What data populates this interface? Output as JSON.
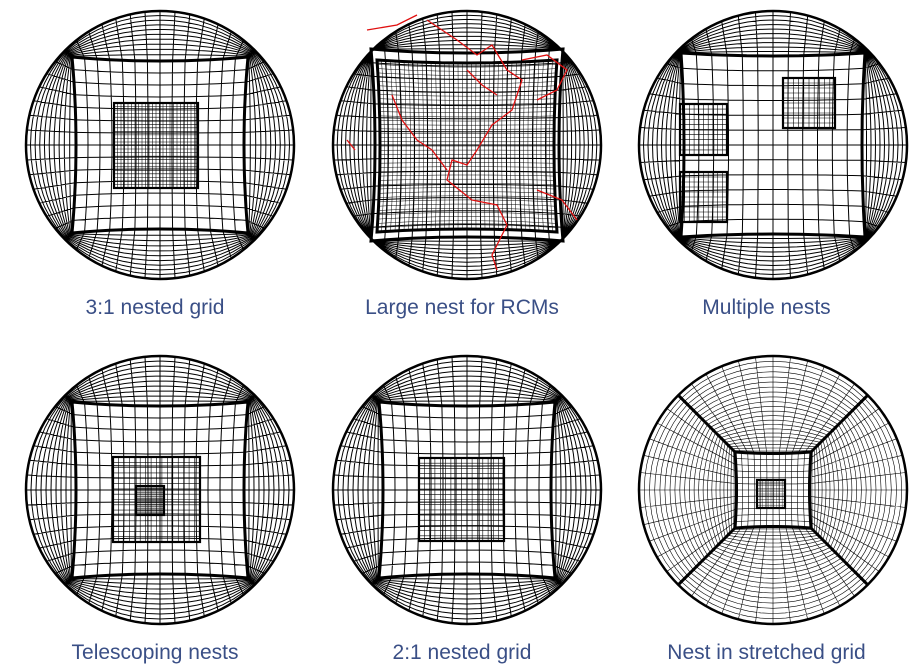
{
  "colors": {
    "grid_line": "#000000",
    "coastline": "#e01010",
    "caption": "#3a4f86",
    "background": "#ffffff"
  },
  "panels": [
    {
      "id": "p1",
      "caption": "3:1 nested grid",
      "variant": "nest-3to1"
    },
    {
      "id": "p2",
      "caption": "Large nest for RCMs",
      "variant": "large-nest"
    },
    {
      "id": "p3",
      "caption": "Multiple nests",
      "variant": "multiple-nests"
    },
    {
      "id": "p4",
      "caption": "Telescoping nests",
      "variant": "telescoping"
    },
    {
      "id": "p5",
      "caption": "2:1 nested grid",
      "variant": "nest-2to1"
    },
    {
      "id": "p6",
      "caption": "Nest in stretched grid",
      "variant": "stretched"
    }
  ]
}
